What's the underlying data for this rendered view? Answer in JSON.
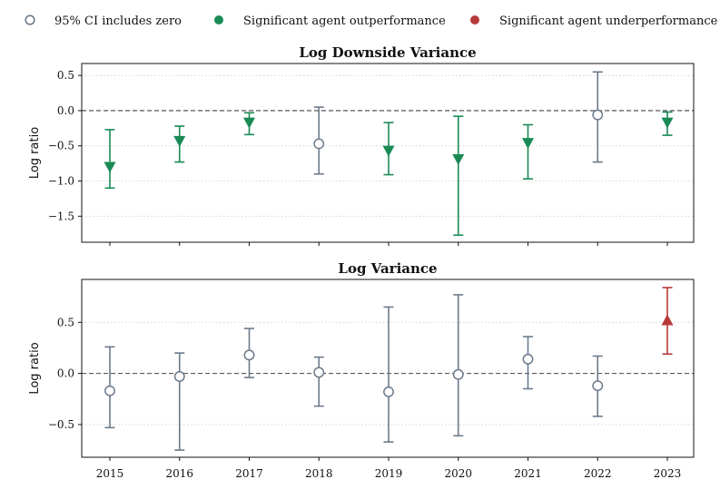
{
  "legend": {
    "items": [
      {
        "label": "95% CI includes zero",
        "style": "hollow-circle",
        "color": "#6b7b8c"
      },
      {
        "label": "Significant agent outperformance",
        "style": "filled-circle",
        "color": "#1a8a55"
      },
      {
        "label": "Significant agent underperformance",
        "style": "filled-circle",
        "color": "#b83a3a"
      }
    ],
    "position": "top"
  },
  "colors": {
    "neutral": "#6b7b8c",
    "out": "#1a8a55",
    "under": "#b83a3a",
    "zero_line": "#444444",
    "grid": "#cccccc"
  },
  "chart_data": [
    {
      "type": "scatter",
      "title": "Log Downside Variance",
      "ylabel": "Log ratio",
      "xlabel": "",
      "x": [
        2015,
        2016,
        2017,
        2018,
        2019,
        2020,
        2021,
        2022,
        2023
      ],
      "y": [
        -0.8,
        -0.43,
        -0.17,
        -0.47,
        -0.57,
        -0.69,
        -0.46,
        -0.06,
        -0.17
      ],
      "ci_low": [
        -1.1,
        -0.73,
        -0.34,
        -0.9,
        -0.91,
        -1.77,
        -0.97,
        -0.73,
        -0.35
      ],
      "ci_high": [
        -0.27,
        -0.22,
        -0.03,
        0.05,
        -0.17,
        -0.08,
        -0.2,
        0.55,
        -0.02
      ],
      "status": [
        "out",
        "out",
        "out",
        "neutral",
        "out",
        "out",
        "out",
        "neutral",
        "out"
      ],
      "ylim": [
        -1.87,
        0.67
      ],
      "yticks": [
        0.5,
        0.0,
        -0.5,
        -1.0,
        -1.5
      ],
      "ytick_labels": [
        "0.5",
        "0.0",
        "−0.5",
        "−1.0",
        "−1.5"
      ],
      "xtick_labels_shown": false,
      "grid": "horizontal dotted",
      "reference_line": 0
    },
    {
      "type": "scatter",
      "title": "Log Variance",
      "ylabel": "Log ratio",
      "xlabel": "",
      "x": [
        2015,
        2016,
        2017,
        2018,
        2019,
        2020,
        2021,
        2022,
        2023
      ],
      "y": [
        -0.17,
        -0.03,
        0.18,
        0.01,
        -0.18,
        -0.01,
        0.14,
        -0.12,
        0.52
      ],
      "ci_low": [
        -0.53,
        -0.75,
        -0.04,
        -0.32,
        -0.67,
        -0.61,
        -0.15,
        -0.42,
        0.19
      ],
      "ci_high": [
        0.26,
        0.2,
        0.44,
        0.16,
        0.65,
        0.77,
        0.36,
        0.17,
        0.84
      ],
      "status": [
        "neutral",
        "neutral",
        "neutral",
        "neutral",
        "neutral",
        "neutral",
        "neutral",
        "neutral",
        "under"
      ],
      "ylim": [
        -0.82,
        0.92
      ],
      "yticks": [
        0.5,
        0.0,
        -0.5
      ],
      "ytick_labels": [
        "0.5",
        "0.0",
        "−0.5"
      ],
      "xtick_labels": [
        "2015",
        "2016",
        "2017",
        "2018",
        "2019",
        "2020",
        "2021",
        "2022",
        "2023"
      ],
      "xtick_labels_shown": true,
      "grid": "horizontal dotted",
      "reference_line": 0
    }
  ]
}
